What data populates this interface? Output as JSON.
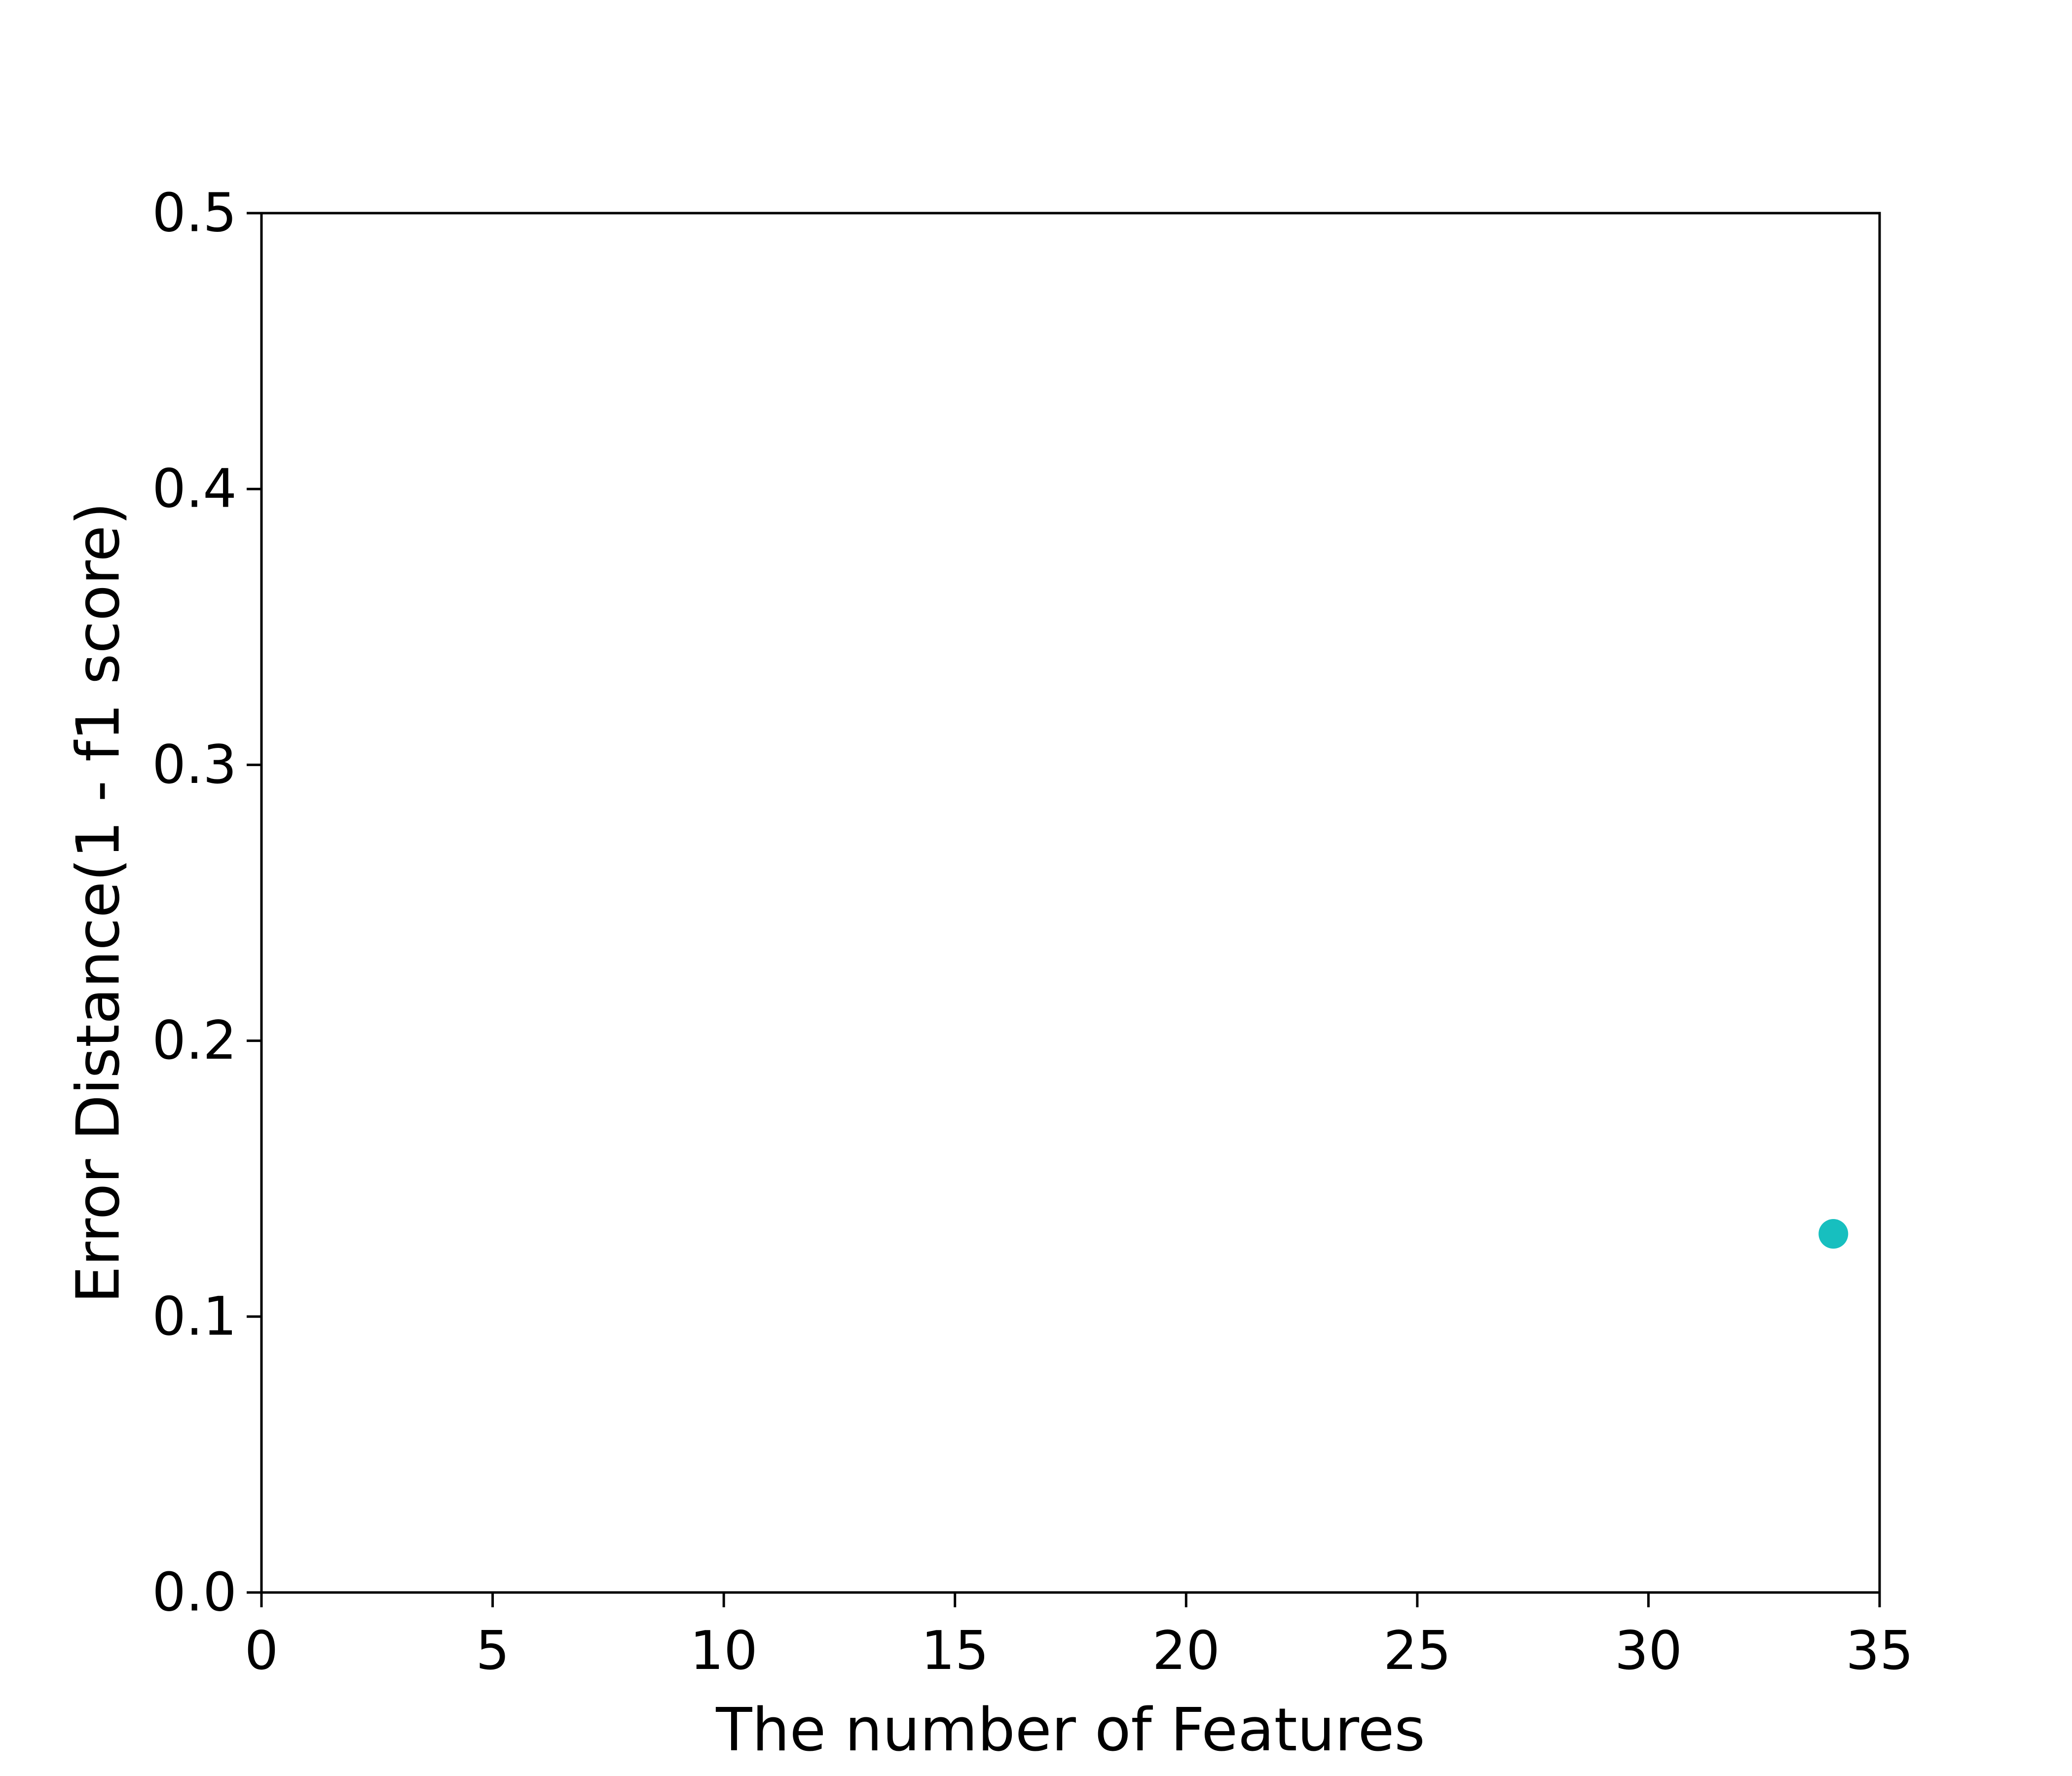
{
  "chart_data": {
    "type": "scatter",
    "title": "",
    "xlabel": "The number of Features",
    "ylabel": "Error Distance(1 - f1 score)",
    "xlim": [
      0,
      35
    ],
    "ylim": [
      0,
      0.5
    ],
    "xticks": [
      "0",
      "5",
      "10",
      "15",
      "20",
      "25",
      "30",
      "35"
    ],
    "yticks": [
      "0.0",
      "0.1",
      "0.2",
      "0.3",
      "0.4",
      "0.5"
    ],
    "grid": false,
    "legend": false,
    "series": [
      {
        "color": "#17bfbf",
        "points": [
          {
            "x": 34,
            "y": 0.13
          }
        ]
      }
    ]
  }
}
